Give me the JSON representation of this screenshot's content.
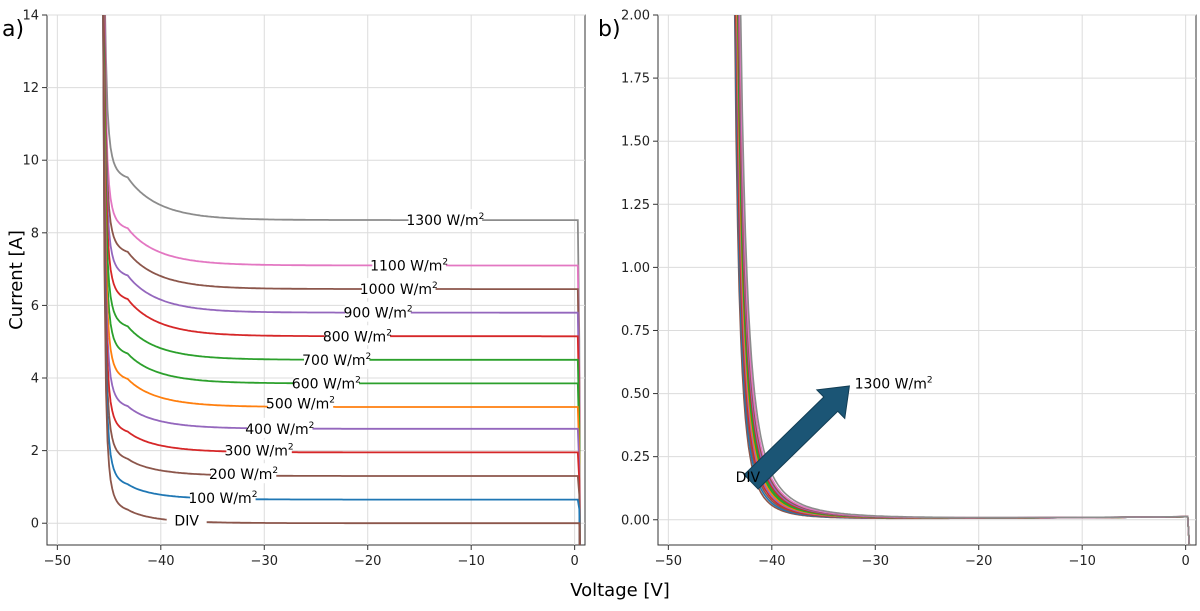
{
  "figure": {
    "xlabel": "Voltage [V]",
    "ylabel": "Current [A]",
    "unit_superscript": "2"
  },
  "colors": {
    "1300": "#8c8c8c",
    "1100": "#e377c2",
    "1000": "#8c564b",
    "900": "#9467bd",
    "800": "#d62728",
    "700": "#2ca02c",
    "600": "#2ca02c",
    "500": "#ff7f0e",
    "400": "#9467bd",
    "300": "#d62728",
    "200": "#8c564b",
    "100": "#1f77b4",
    "DIV": "#8c564b",
    "arrow": "#1b5575"
  },
  "chart_data": [
    {
      "type": "line",
      "panel_label": "a)",
      "title": "",
      "xlabel": "Voltage [V]",
      "ylabel": "Current [A]",
      "xlim": [
        -51,
        1
      ],
      "ylim": [
        -0.6,
        14
      ],
      "xticks": [
        -50,
        -40,
        -30,
        -20,
        -10,
        0
      ],
      "xtick_labels": [
        "−50",
        "−40",
        "−30",
        "−20",
        "−10",
        "0"
      ],
      "yticks": [
        0,
        2,
        4,
        6,
        8,
        10,
        12,
        14
      ],
      "ytick_labels": [
        "0",
        "2",
        "4",
        "6",
        "8",
        "10",
        "12",
        "14"
      ],
      "grid": true,
      "series": [
        {
          "name": "1300",
          "label": "1300 W/m",
          "plateau": 8.35,
          "shoulder": 9.4,
          "label_x": -12.5,
          "label_y": 8.35
        },
        {
          "name": "1100",
          "label": "1100 W/m",
          "plateau": 7.1,
          "shoulder": 8.0,
          "label_x": -16,
          "label_y": 7.1
        },
        {
          "name": "1000",
          "label": "1000 W/m",
          "plateau": 6.45,
          "shoulder": 7.35,
          "label_x": -17,
          "label_y": 6.45
        },
        {
          "name": "900",
          "label": "900 W/m",
          "plateau": 5.8,
          "shoulder": 6.7,
          "label_x": -19,
          "label_y": 5.8
        },
        {
          "name": "800",
          "label": "800 W/m",
          "plateau": 5.15,
          "shoulder": 6.05,
          "label_x": -21,
          "label_y": 5.15
        },
        {
          "name": "700",
          "label": "700 W/m",
          "plateau": 4.5,
          "shoulder": 5.3,
          "label_x": -23,
          "label_y": 4.5
        },
        {
          "name": "600",
          "label": "600 W/m",
          "plateau": 3.85,
          "shoulder": 4.55,
          "label_x": -24,
          "label_y": 3.85
        },
        {
          "name": "500",
          "label": "500 W/m",
          "plateau": 3.2,
          "shoulder": 3.85,
          "label_x": -26.5,
          "label_y": 3.3
        },
        {
          "name": "400",
          "label": "400 W/m",
          "plateau": 2.6,
          "shoulder": 3.1,
          "label_x": -28.5,
          "label_y": 2.6
        },
        {
          "name": "300",
          "label": "300 W/m",
          "plateau": 1.95,
          "shoulder": 2.4,
          "label_x": -30.5,
          "label_y": 2.0
        },
        {
          "name": "200",
          "label": "200 W/m",
          "plateau": 1.3,
          "shoulder": 1.65,
          "label_x": -32,
          "label_y": 1.35
        },
        {
          "name": "100",
          "label": "100 W/m",
          "plateau": 0.65,
          "shoulder": 0.95,
          "label_x": -34,
          "label_y": 0.7
        },
        {
          "name": "DIV",
          "label": "DIV",
          "plateau": 0.0,
          "shoulder": 0.25,
          "label_x": -37.5,
          "label_y": 0.08
        }
      ]
    },
    {
      "type": "line",
      "panel_label": "b)",
      "title": "",
      "xlabel": "Voltage [V]",
      "ylabel": "",
      "xlim": [
        -51,
        1
      ],
      "ylim": [
        -0.1,
        2.0
      ],
      "xticks": [
        -50,
        -40,
        -30,
        -20,
        -10,
        0
      ],
      "xtick_labels": [
        "−50",
        "−40",
        "−30",
        "−20",
        "−10",
        "0"
      ],
      "yticks": [
        0,
        0.25,
        0.5,
        0.75,
        1.0,
        1.25,
        1.5,
        1.75,
        2.0
      ],
      "ytick_labels": [
        "0.00",
        "0.25",
        "0.50",
        "0.75",
        "1.00",
        "1.25",
        "1.50",
        "1.75",
        "2.00"
      ],
      "grid": true,
      "annotations": [
        {
          "text": "1300 W/m",
          "superscript": "2",
          "x": -32,
          "y": 0.52
        },
        {
          "text": "DIV",
          "x": -43.5,
          "y": 0.15
        }
      ],
      "arrow": {
        "from": [
          -42,
          0.15
        ],
        "to": [
          -32.5,
          0.53
        ]
      },
      "series": [
        {
          "name": "DIV",
          "decay_scale": 2.2
        },
        {
          "name": "100",
          "decay_scale": 2.45
        },
        {
          "name": "200",
          "decay_scale": 2.7
        },
        {
          "name": "300",
          "decay_scale": 2.95
        },
        {
          "name": "400",
          "decay_scale": 3.2
        },
        {
          "name": "500",
          "decay_scale": 3.45
        },
        {
          "name": "600",
          "decay_scale": 3.7
        },
        {
          "name": "700",
          "decay_scale": 3.95
        },
        {
          "name": "800",
          "decay_scale": 4.2
        },
        {
          "name": "900",
          "decay_scale": 4.45
        },
        {
          "name": "1000",
          "decay_scale": 4.75
        },
        {
          "name": "1100",
          "decay_scale": 5.05
        },
        {
          "name": "1300",
          "decay_scale": 5.6
        }
      ]
    }
  ]
}
